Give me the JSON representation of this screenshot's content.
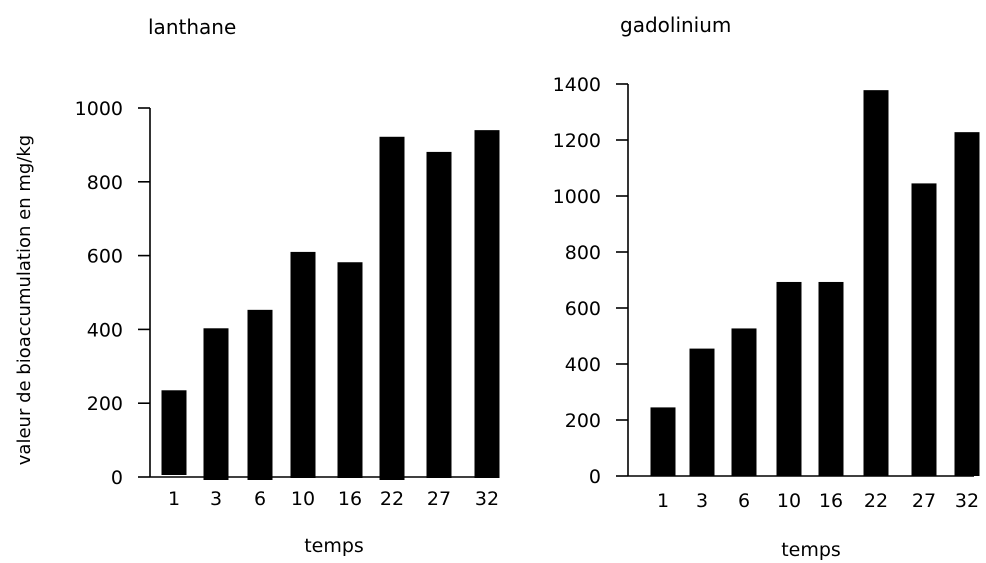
{
  "chart_data": [
    {
      "type": "bar",
      "title": "lanthane",
      "xlabel": "temps",
      "ylabel": "valeur de bioaccumulation en mg/kg",
      "categories": [
        "1",
        "3",
        "6",
        "10",
        "16",
        "22",
        "27",
        "32"
      ],
      "values": [
        235,
        403,
        453,
        610,
        582,
        922,
        881,
        940
      ],
      "ylim": [
        0,
        1000
      ],
      "yticks": [
        0,
        200,
        400,
        600,
        800,
        1000
      ],
      "bar_color": "#000000",
      "grid": false
    },
    {
      "type": "bar",
      "title": "gadolinium",
      "xlabel": "temps",
      "ylabel": "",
      "categories": [
        "1",
        "3",
        "6",
        "10",
        "16",
        "22",
        "27",
        "32"
      ],
      "values": [
        245,
        455,
        527,
        693,
        693,
        1378,
        1045,
        1228
      ],
      "ylim": [
        0,
        1400
      ],
      "yticks": [
        0,
        200,
        400,
        600,
        800,
        1000,
        1200,
        1400
      ],
      "bar_color": "#000000",
      "grid": false
    }
  ]
}
